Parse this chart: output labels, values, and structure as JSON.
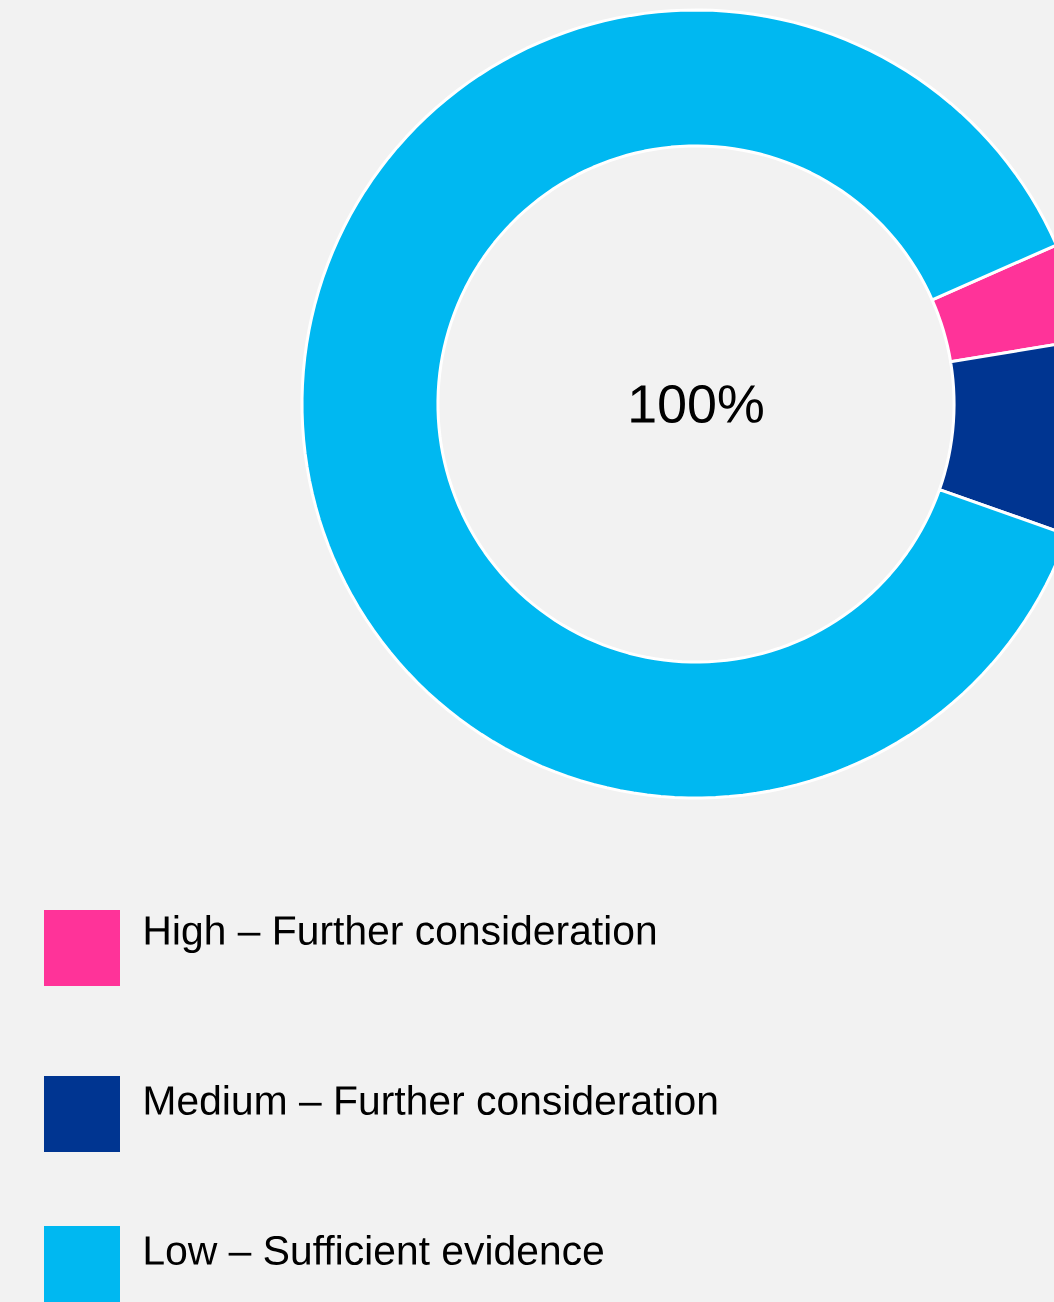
{
  "chart_data": {
    "type": "donut",
    "categories": [
      "High – Further consideration",
      "Medium – Further consideration",
      "Low – Sufficient evidence"
    ],
    "values": [
      4,
      8,
      88
    ],
    "colors": [
      "#ff3399",
      "#003591",
      "#00b8f1"
    ],
    "annotations": [
      "100%"
    ],
    "legend": "bottom"
  }
}
